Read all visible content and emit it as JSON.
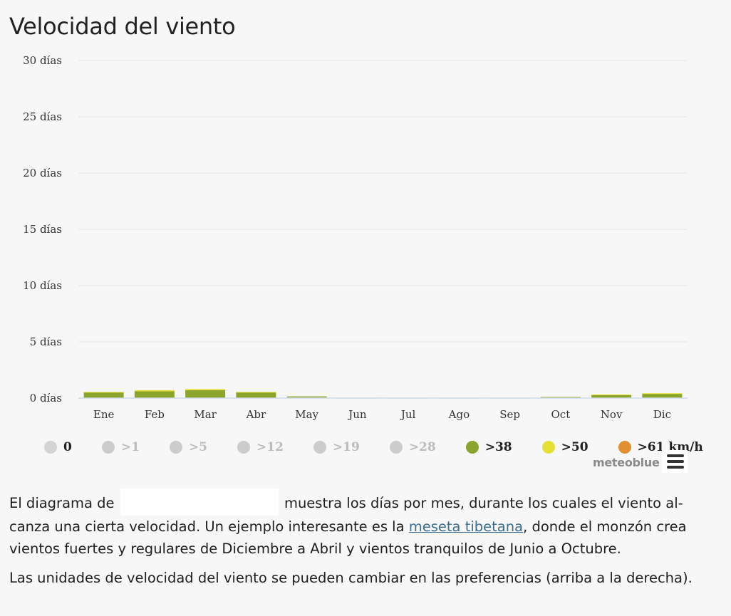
{
  "title": "Velocidad del viento",
  "chart_data": {
    "type": "bar",
    "stacked": true,
    "categories": [
      "Ene",
      "Feb",
      "Mar",
      "Abr",
      "May",
      "Jun",
      "Jul",
      "Ago",
      "Sep",
      "Oct",
      "Nov",
      "Dic"
    ],
    "ylim": [
      0,
      30
    ],
    "yticks": [
      0,
      5,
      10,
      15,
      20,
      25,
      30
    ],
    "ytick_labels": [
      "0 días",
      "5 días",
      "10 días",
      "15 días",
      "20 días",
      "25 días",
      "30 días"
    ],
    "grid": true,
    "legend_position": "bottom",
    "series": [
      {
        "name": "0",
        "color": "#d4d4d4",
        "visible": true,
        "values": [
          0,
          0,
          0,
          0,
          0.05,
          0.02,
          0.02,
          0.02,
          0.02,
          0,
          0,
          0
        ]
      },
      {
        "name": ">1",
        "color": "#b9b9b9",
        "visible": false,
        "values": [
          0,
          0,
          0,
          0,
          0,
          0,
          0,
          0,
          0,
          0,
          0,
          0
        ]
      },
      {
        "name": ">5",
        "color": "#b9b9b9",
        "visible": false,
        "values": [
          0,
          0,
          0,
          0,
          0,
          0,
          0,
          0,
          0,
          0,
          0,
          0
        ]
      },
      {
        "name": ">12",
        "color": "#b9b9b9",
        "visible": false,
        "values": [
          0,
          0,
          0,
          0,
          0,
          0,
          0,
          0,
          0,
          0,
          0,
          0
        ]
      },
      {
        "name": ">19",
        "color": "#b9b9b9",
        "visible": false,
        "values": [
          0,
          0,
          0,
          0,
          0,
          0,
          0,
          0,
          0,
          0,
          0,
          0
        ]
      },
      {
        "name": ">28",
        "color": "#b9b9b9",
        "visible": false,
        "values": [
          0,
          0,
          0,
          0,
          0,
          0,
          0,
          0,
          0,
          0,
          0,
          0
        ]
      },
      {
        "name": ">38",
        "color": "#8ba52c",
        "visible": true,
        "values": [
          0.5,
          0.6,
          0.7,
          0.5,
          0.1,
          0,
          0,
          0,
          0,
          0.1,
          0.3,
          0.4
        ]
      },
      {
        "name": ">50",
        "color": "#e5e035",
        "visible": true,
        "values": [
          0.05,
          0.1,
          0.1,
          0.05,
          0,
          0,
          0,
          0,
          0,
          0,
          0.02,
          0.03
        ]
      },
      {
        "name": ">61 km/h",
        "color": "#e0902f",
        "visible": true,
        "values": [
          0,
          0,
          0,
          0,
          0,
          0,
          0,
          0,
          0,
          0,
          0,
          0
        ]
      }
    ]
  },
  "credit": "meteoblue",
  "text": {
    "p1_before": "El diagrama de",
    "p1_after": "muestra los días por mes, durante los cuales el viento al-canza una cierta velocidad. Un ejemplo interesante es la",
    "link": "meseta tibetana",
    "p1_end": ", donde el monzón crea vientos fuertes y regulares de Diciembre a Abril y vientos tranquilos de Junio a Octubre.",
    "p2": "Las unidades de velocidad del viento se pueden cambiar en las preferencias (arriba a la derecha)."
  }
}
